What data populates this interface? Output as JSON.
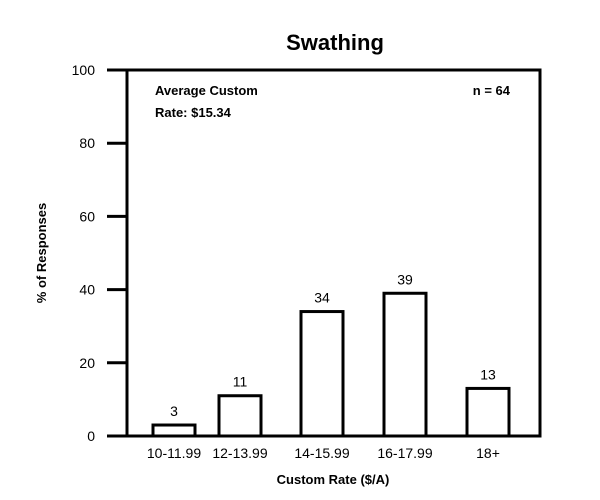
{
  "chart_data": {
    "type": "bar",
    "title": "Swathing",
    "xlabel": "Custom Rate ($/A)",
    "ylabel": "% of Responses",
    "ylim": [
      0,
      100
    ],
    "yticks": [
      "0",
      "20",
      "40",
      "60",
      "80",
      "100"
    ],
    "categories": [
      "10-11.99",
      "12-13.99",
      "14-15.99",
      "16-17.99",
      "18+"
    ],
    "values": [
      3,
      11,
      34,
      39,
      13
    ],
    "data_labels": [
      "3",
      "11",
      "34",
      "39",
      "13"
    ],
    "annotations": {
      "average_line1": "Average Custom",
      "average_line2": "Rate: $15.34",
      "n": "n = 64"
    },
    "grid": false,
    "legend": "none",
    "bar_fill": "#ffffff",
    "bar_stroke": "#000000"
  }
}
